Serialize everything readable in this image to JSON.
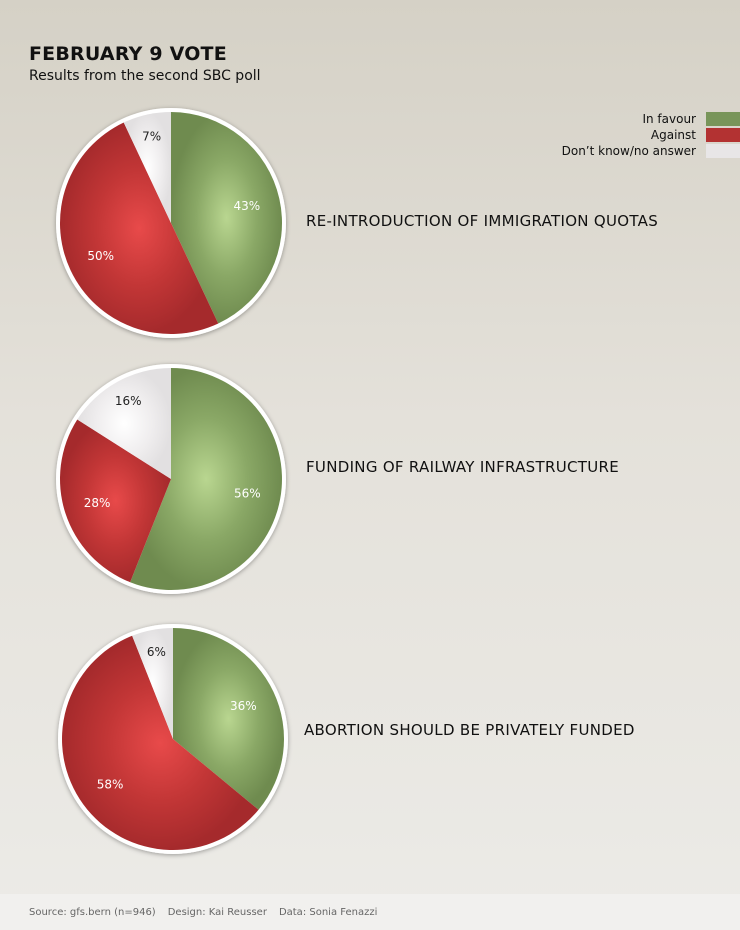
{
  "header": {
    "title": "FEBRUARY 9 VOTE",
    "subtitle": "Results from the second SBC poll"
  },
  "legend": [
    {
      "label": "In favour",
      "color": "#78955a"
    },
    {
      "label": "Against",
      "color": "#b33232"
    },
    {
      "label": "Don’t know/no answer",
      "color": "#e8e6e7"
    }
  ],
  "chart_data": [
    {
      "type": "pie",
      "title": "RE-INTRODUCTION OF IMMIGRATION QUOTAS",
      "slices": [
        {
          "label": "In favour",
          "value": 43,
          "display": "43%"
        },
        {
          "label": "Against",
          "value": 50,
          "display": "50%"
        },
        {
          "label": "Don’t know/no answer",
          "value": 7,
          "display": "7%"
        }
      ]
    },
    {
      "type": "pie",
      "title": "FUNDING OF RAILWAY INFRASTRUCTURE",
      "slices": [
        {
          "label": "In favour",
          "value": 56,
          "display": "56%"
        },
        {
          "label": "Against",
          "value": 28,
          "display": "28%"
        },
        {
          "label": "Don’t know/no answer",
          "value": 16,
          "display": "16%"
        }
      ]
    },
    {
      "type": "pie",
      "title": "ABORTION SHOULD BE PRIVATELY FUNDED",
      "slices": [
        {
          "label": "In favour",
          "value": 36,
          "display": "36%"
        },
        {
          "label": "Against",
          "value": 58,
          "display": "58%"
        },
        {
          "label": "Don’t know/no answer",
          "value": 6,
          "display": "6%"
        }
      ]
    }
  ],
  "footer": {
    "source": "Source: gfs.bern (n=946)",
    "design": "Design: Kai Reusser",
    "data": "Data: Sonia Fenazzi"
  }
}
